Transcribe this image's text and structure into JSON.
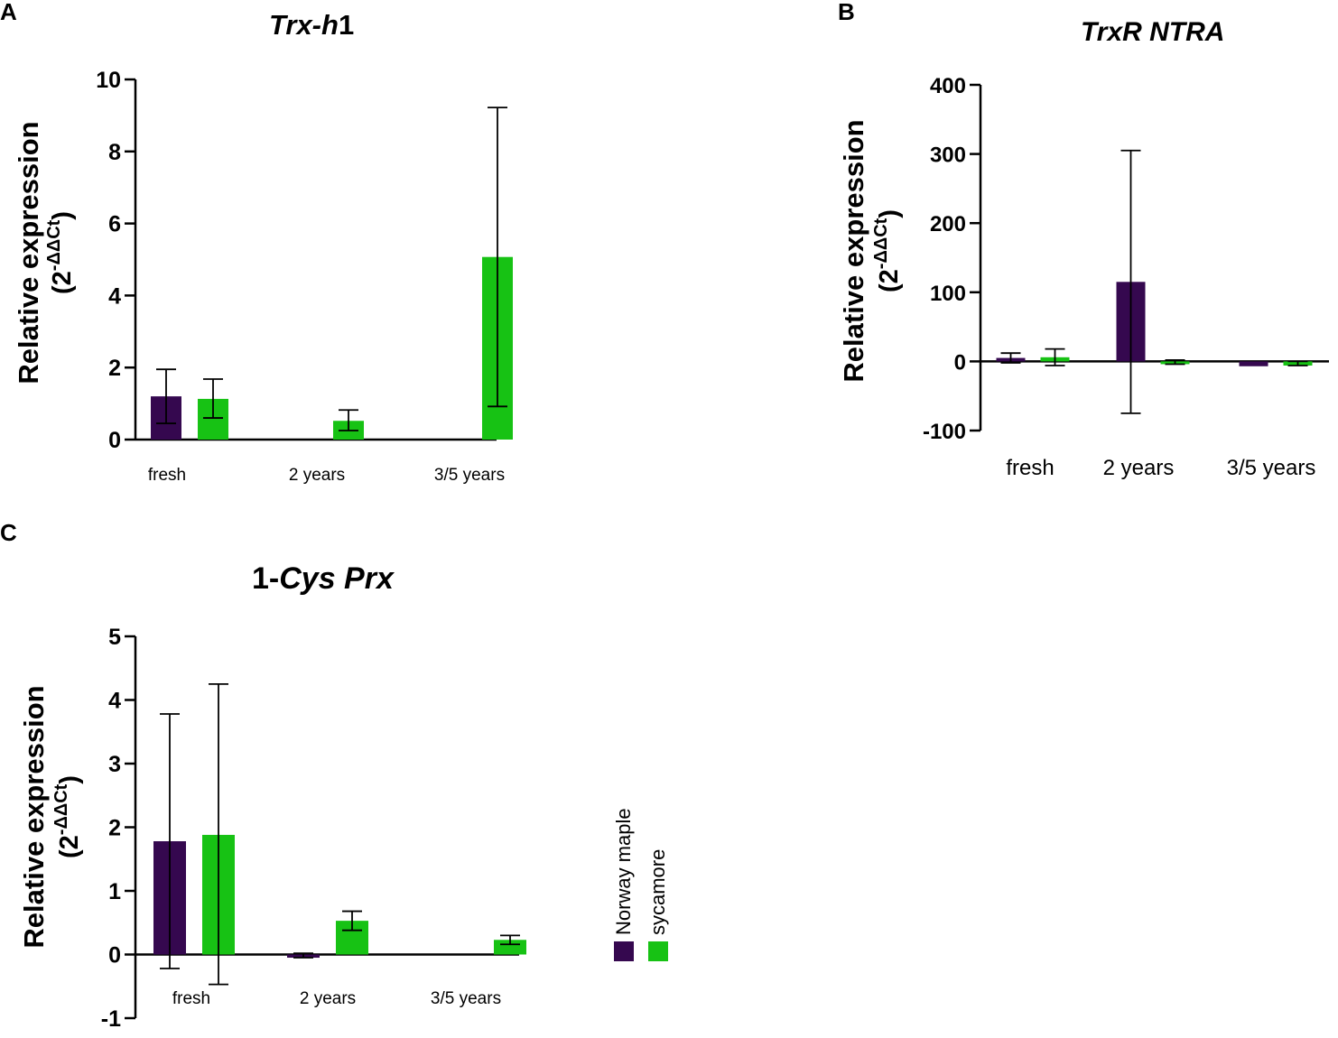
{
  "panels": {
    "a": {
      "letter": "A",
      "title_pre": "",
      "title_italic": "Trx-h",
      "title_post": "1"
    },
    "b": {
      "letter": "B",
      "title_pre": "",
      "title_italic": "TrxR NTRA",
      "title_post": ""
    },
    "c": {
      "letter": "C",
      "title_pre": "1-",
      "title_italic": "Cys Prx",
      "title_post": ""
    }
  },
  "colors": {
    "norway_maple": "#35084f",
    "sycamore": "#17c214"
  },
  "legend": {
    "items": [
      {
        "label": "Norway maple",
        "color": "#35084f"
      },
      {
        "label": "sycamore",
        "color": "#17c214"
      }
    ]
  },
  "chart_data": [
    {
      "type": "bar",
      "title": "Trx-h1",
      "ylabel": "Relative expression",
      "ylabel_sub": "(2",
      "ylabel_sup": "-ΔΔCt",
      "ylabel_close": ")",
      "categories": [
        "fresh",
        "2 years",
        "3/5 years"
      ],
      "ylim": [
        0,
        10
      ],
      "yticks": [
        0,
        2,
        4,
        6,
        8,
        10
      ],
      "series": [
        {
          "name": "Norway maple",
          "values": [
            1.2,
            null,
            null
          ],
          "err_low": [
            0.45,
            null,
            null
          ],
          "err_high": [
            1.95,
            null,
            null
          ]
        },
        {
          "name": "sycamore",
          "values": [
            1.13,
            0.52,
            5.07
          ],
          "err_low": [
            0.6,
            0.25,
            0.92
          ],
          "err_high": [
            1.68,
            0.82,
            9.22
          ]
        }
      ]
    },
    {
      "type": "bar",
      "title": "TrxR NTRA",
      "ylabel": "Relative expression",
      "ylabel_sub": "(2",
      "ylabel_sup": "-ΔΔCt",
      "ylabel_close": ")",
      "categories": [
        "fresh",
        "2 years",
        "3/5 years"
      ],
      "ylim": [
        -100,
        400
      ],
      "yticks": [
        -100,
        0,
        100,
        200,
        300,
        400
      ],
      "series": [
        {
          "name": "Norway maple",
          "values": [
            5,
            115,
            -7
          ],
          "err_low": [
            -2,
            -75,
            -7
          ],
          "err_high": [
            12,
            305,
            -7
          ]
        },
        {
          "name": "sycamore",
          "values": [
            6,
            -4,
            -6
          ],
          "err_low": [
            -6,
            -4,
            -6
          ],
          "err_high": [
            18,
            2,
            0
          ]
        }
      ]
    },
    {
      "type": "bar",
      "title": "1-Cys Prx",
      "ylabel": "Relative expression",
      "ylabel_sub": "(2",
      "ylabel_sup": "-ΔΔCt",
      "ylabel_close": ")",
      "categories": [
        "fresh",
        "2 years",
        "3/5 years"
      ],
      "ylim": [
        -1,
        5
      ],
      "yticks": [
        -1,
        0,
        1,
        2,
        3,
        4,
        5
      ],
      "series": [
        {
          "name": "Norway maple",
          "values": [
            1.78,
            -0.05,
            null
          ],
          "err_low": [
            -0.22,
            -0.05,
            null
          ],
          "err_high": [
            3.78,
            0.02,
            null
          ]
        },
        {
          "name": "sycamore",
          "values": [
            1.88,
            0.53,
            0.23
          ],
          "err_low": [
            -0.47,
            0.38,
            0.16
          ],
          "err_high": [
            4.25,
            0.68,
            0.3
          ]
        }
      ]
    }
  ]
}
